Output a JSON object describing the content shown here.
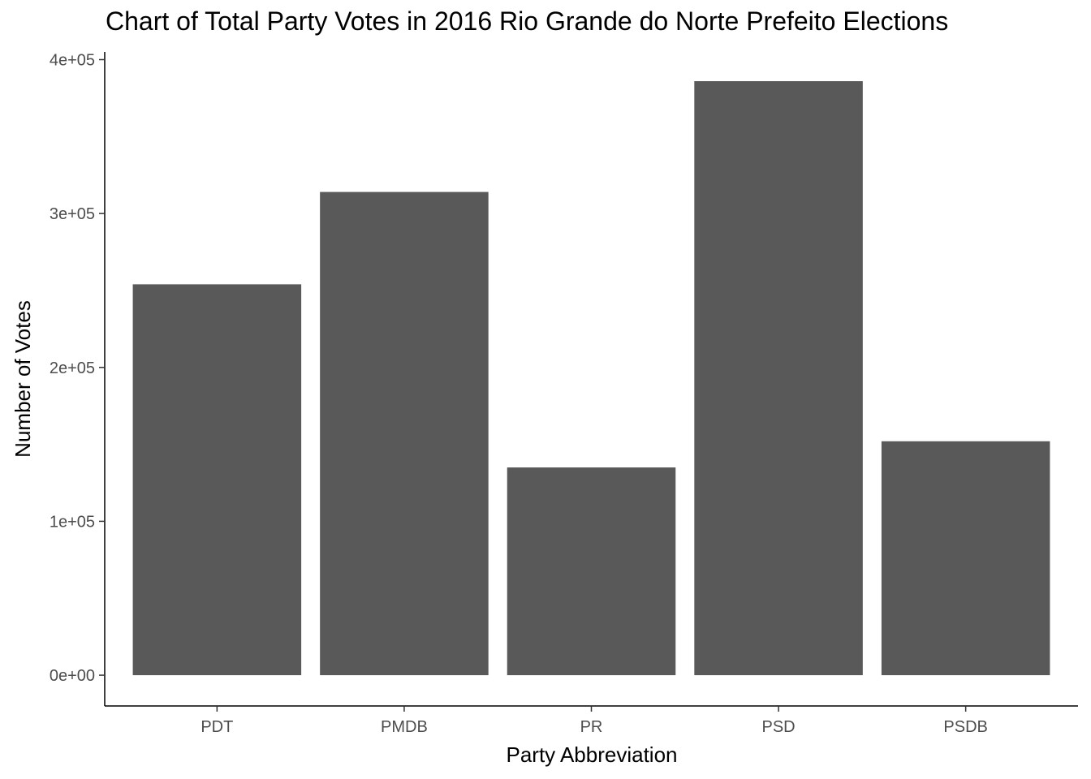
{
  "chart_data": {
    "type": "bar",
    "title": "Chart of Total Party Votes in 2016 Rio Grande do Norte Prefeito Elections",
    "xlabel": "Party Abbreviation",
    "ylabel": "Number of Votes",
    "categories": [
      "PDT",
      "PMDB",
      "PR",
      "PSD",
      "PSDB"
    ],
    "values": [
      254000,
      314000,
      135000,
      386000,
      152000
    ],
    "ylim": [
      -20000,
      405000
    ],
    "yticks": [
      0,
      100000,
      200000,
      300000,
      400000
    ],
    "ytick_labels": [
      "0e+00",
      "1e+05",
      "2e+05",
      "3e+05",
      "4e+05"
    ],
    "bar_color": "#595959",
    "grid": false,
    "legend": "none"
  }
}
